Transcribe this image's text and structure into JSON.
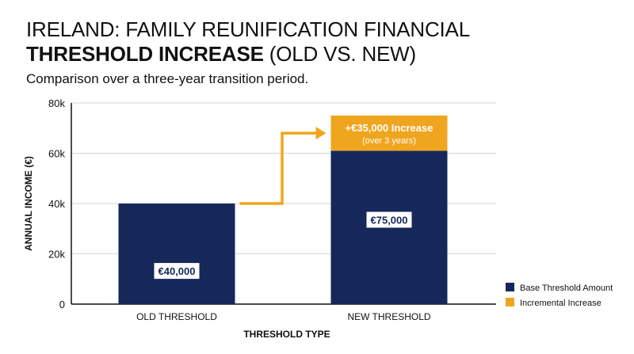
{
  "title": {
    "line1": "IRELAND: FAMILY REUNIFICATION FINANCIAL",
    "line2_bold": "THRESHOLD INCREASE",
    "line2_rest": " (OLD VS. NEW)"
  },
  "subtitle": "Comparison over a three-year transition period.",
  "chart_data": {
    "type": "bar",
    "stacked": true,
    "categories": [
      "OLD THRESHOLD",
      "NEW THRESHOLD"
    ],
    "series": [
      {
        "name": "Base Threshold Amount",
        "color": "#16285a",
        "values": [
          40000,
          61000
        ]
      },
      {
        "name": "Incremental Increase",
        "color": "#f0a51e",
        "values": [
          0,
          14000
        ]
      }
    ],
    "data_labels": [
      "€40,000",
      "€75,000"
    ],
    "annotation": {
      "text": "+€35,000 Increase",
      "subtext": "(over 3 years)"
    },
    "xlabel": "THRESHOLD TYPE",
    "ylabel": "ANNUAL INCOME (€)",
    "ylim": [
      0,
      80000
    ],
    "yticks": [
      0,
      20000,
      40000,
      60000,
      80000
    ],
    "ytick_labels": [
      "0",
      "20k",
      "40k",
      "60k",
      "80k"
    ],
    "grid": true,
    "legend_position": "bottom-right",
    "arrow_color": "#f0a51e"
  }
}
